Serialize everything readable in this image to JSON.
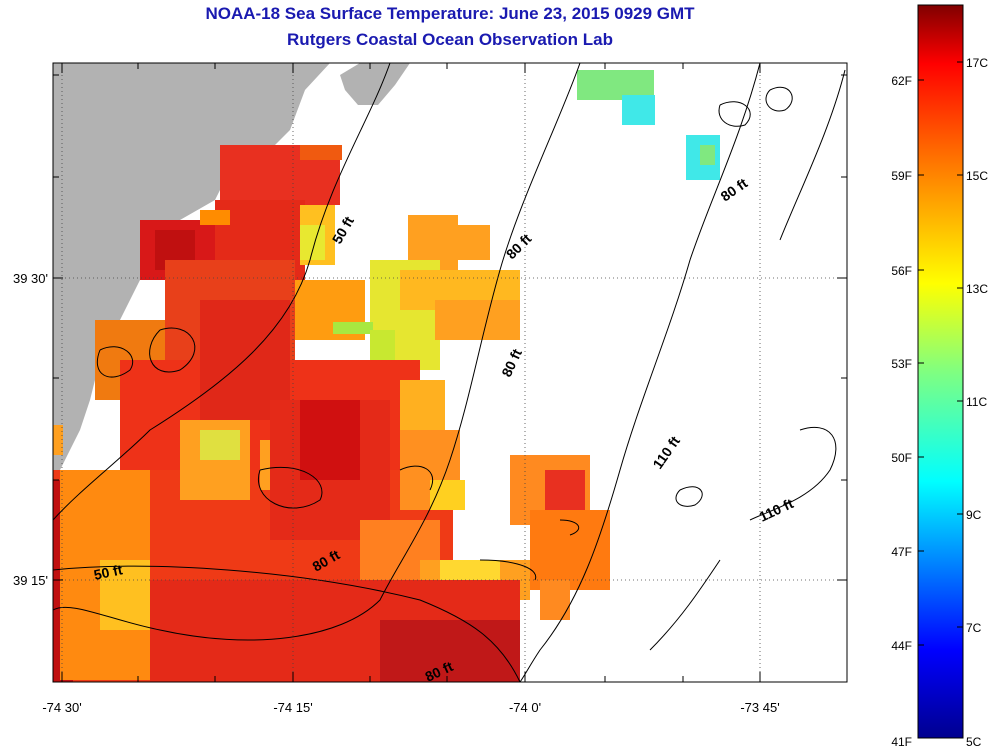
{
  "title": "NOAA-18 Sea Surface Temperature:  June 23, 2015 0929 GMT",
  "subtitle": "Rutgers Coastal Ocean Observation Lab",
  "x_ticks": [
    "-74 30'",
    "-74 15'",
    "-74 0'",
    "-73 45'"
  ],
  "y_ticks": [
    "39 30'",
    "39 15'"
  ],
  "contour_labels": [
    "50 ft",
    "80 ft",
    "80 ft",
    "80 ft",
    "110 ft",
    "110 ft",
    "50 ft",
    "80 ft",
    "80 ft"
  ],
  "colorbar": {
    "fahrenheit": [
      "62F",
      "59F",
      "56F",
      "53F",
      "50F",
      "47F",
      "44F",
      "41F"
    ],
    "celsius": [
      "17C",
      "15C",
      "13C",
      "11C",
      "9C",
      "7C",
      "5C"
    ],
    "range_c": [
      5,
      18
    ]
  },
  "colors": {
    "land": "#b2b2b2",
    "title": "#1a1ab0"
  }
}
